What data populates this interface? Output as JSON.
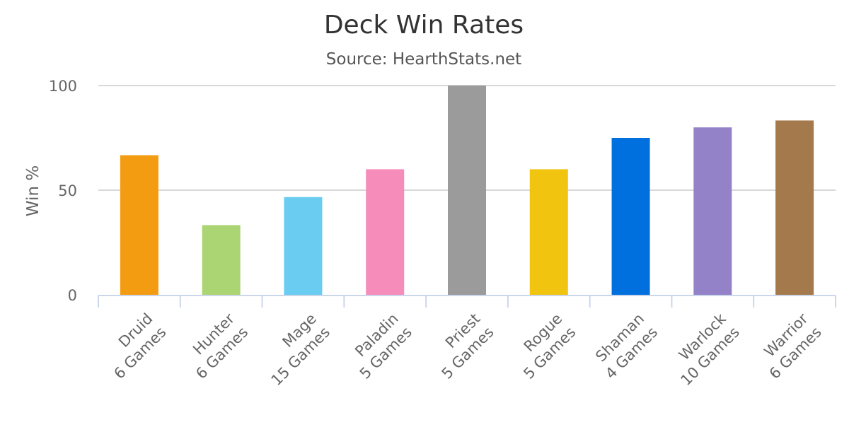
{
  "chart_data": {
    "type": "bar",
    "title": "Deck Win Rates",
    "subtitle": "Source: HearthStats.net",
    "xlabel": "",
    "ylabel": "Win %",
    "ylim": [
      0,
      100
    ],
    "yticks": [
      0,
      50,
      100
    ],
    "grid": true,
    "legend": "none",
    "categories": [
      {
        "line1": "Druid",
        "line2": "6 Games"
      },
      {
        "line1": "Hunter",
        "line2": "6 Games"
      },
      {
        "line1": "Mage",
        "line2": "15 Games"
      },
      {
        "line1": "Paladin",
        "line2": "5 Games"
      },
      {
        "line1": "Priest",
        "line2": "5 Games"
      },
      {
        "line1": "Rogue",
        "line2": "5 Games"
      },
      {
        "line1": "Shaman",
        "line2": "4 Games"
      },
      {
        "line1": "Warlock",
        "line2": "10 Games"
      },
      {
        "line1": "Warrior",
        "line2": "6 Games"
      }
    ],
    "values": [
      66.7,
      33.3,
      46.7,
      60,
      100,
      60,
      75,
      80,
      83.3
    ],
    "colors": [
      "#F39C12",
      "#ABD473",
      "#69CCF0",
      "#F58CBA",
      "#9B9B9B",
      "#F1C40F",
      "#0070DE",
      "#9482C9",
      "#A47A4C"
    ]
  }
}
